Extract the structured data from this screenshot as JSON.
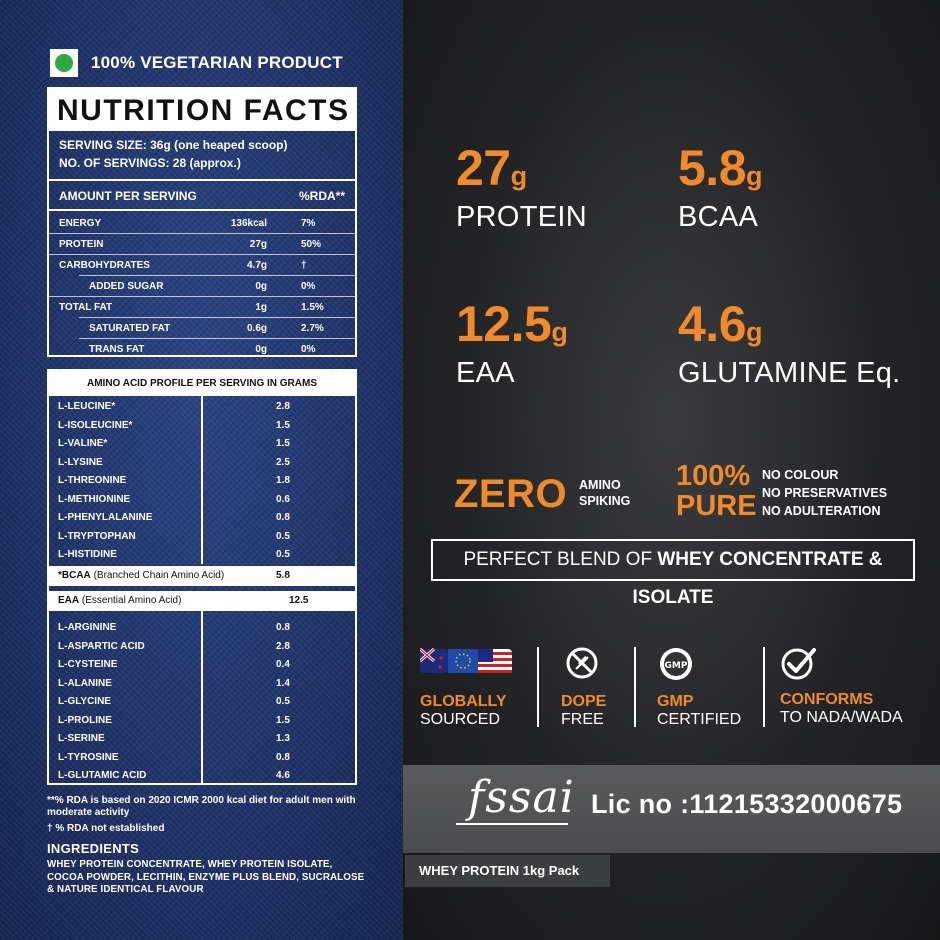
{
  "veg_label": "100% VEGETARIAN PRODUCT",
  "nutrition": {
    "title": "NUTRITION FACTS",
    "serving_size": "SERVING SIZE: 36g (one heaped scoop)",
    "servings": "NO. OF SERVINGS: 28 (approx.)",
    "amount_header": "AMOUNT PER SERVING",
    "rda_header": "%RDA**",
    "rows": [
      {
        "name": "ENERGY",
        "value": "136kcal",
        "rda": "7%"
      },
      {
        "name": "PROTEIN",
        "value": "27g",
        "rda": "50%"
      },
      {
        "name": "CARBOHYDRATES",
        "value": "4.7g",
        "rda": "†"
      },
      {
        "name": "ADDED SUGAR",
        "value": "0g",
        "rda": "0%"
      },
      {
        "name": "TOTAL FAT",
        "value": "1g",
        "rda": "1.5%"
      },
      {
        "name": "SATURATED FAT",
        "value": "0.6g",
        "rda": "2.7%"
      },
      {
        "name": "TRANS FAT",
        "value": "0g",
        "rda": "0%"
      }
    ]
  },
  "amino": {
    "title": "AMINO ACID PROFILE PER SERVING IN GRAMS",
    "group1": [
      {
        "name": "L-LEUCINE*",
        "value": "2.8"
      },
      {
        "name": "L-ISOLEUCINE*",
        "value": "1.5"
      },
      {
        "name": "L-VALINE*",
        "value": "1.5"
      },
      {
        "name": "L-LYSINE",
        "value": "2.5"
      },
      {
        "name": "L-THREONINE",
        "value": "1.8"
      },
      {
        "name": "L-METHIONINE",
        "value": "0.6"
      },
      {
        "name": "L-PHENYLALANINE",
        "value": "0.8"
      },
      {
        "name": "L-TRYPTOPHAN",
        "value": "0.5"
      },
      {
        "name": "L-HISTIDINE",
        "value": "0.5"
      }
    ],
    "bcaa": {
      "abbr": "*BCAA",
      "desc": "(Branched Chain Amino Acid)",
      "value": "5.8"
    },
    "eaa": {
      "abbr": "EAA",
      "desc": "(Essential Amino Acid)",
      "value": "12.5"
    },
    "group2": [
      {
        "name": "L-ARGININE",
        "value": "0.8"
      },
      {
        "name": "L-ASPARTIC ACID",
        "value": "2.8"
      },
      {
        "name": "L-CYSTEINE",
        "value": "0.4"
      },
      {
        "name": "L-ALANINE",
        "value": "1.4"
      },
      {
        "name": "L-GLYCINE",
        "value": "0.5"
      },
      {
        "name": "L-PROLINE",
        "value": "1.5"
      },
      {
        "name": "L-SERINE",
        "value": "1.3"
      },
      {
        "name": "L-TYROSINE",
        "value": "0.8"
      },
      {
        "name": "L-GLUTAMIC ACID",
        "value": "4.6"
      }
    ]
  },
  "footnotes": {
    "rda_note": "**% RDA is based on 2020 ICMR 2000 kcal diet for adult men with moderate activity",
    "dagger_note": "† % RDA not established"
  },
  "ingredients": {
    "title": "INGREDIENTS",
    "text": "WHEY PROTEIN CONCENTRATE, WHEY PROTEIN ISOLATE, COCOA POWDER, LECITHIN, ENZYME PLUS BLEND, SUCRALOSE & NATURE IDENTICAL FLAVOUR"
  },
  "stats": [
    {
      "num": "27",
      "unit": "g",
      "label": "PROTEIN"
    },
    {
      "num": "5.8",
      "unit": "g",
      "label": "BCAA"
    },
    {
      "num": "12.5",
      "unit": "g",
      "label": "EAA"
    },
    {
      "num": "4.6",
      "unit": "g",
      "label": "GLUTAMINE Eq."
    }
  ],
  "zero": {
    "big": "ZERO",
    "line1": "AMINO",
    "line2": "SPIKING"
  },
  "pure": {
    "big1": "100%",
    "big2": "PURE",
    "items": [
      "NO COLOUR",
      "NO PRESERVATIVES",
      "NO ADULTERATION"
    ]
  },
  "blend": {
    "prefix": "PERFECT BLEND OF ",
    "bold": "WHEY CONCENTRATE & ISOLATE"
  },
  "badges": [
    {
      "head": "GLOBALLY",
      "sub": "SOURCED",
      "icon": "flags-icon"
    },
    {
      "head": "DOPE",
      "sub": "FREE",
      "icon": "no-syringe-icon"
    },
    {
      "head": "GMP",
      "sub": "CERTIFIED",
      "icon": "gmp-seal-icon"
    },
    {
      "head": "CONFORMS",
      "sub": "TO NADA/WADA",
      "icon": "check-circle-icon"
    }
  ],
  "gmp_seal_text": "GMP",
  "fssai": {
    "logo": "fssai",
    "license": "Lic no :11215332000675"
  },
  "pack_label": "WHEY PROTEIN 1kg Pack",
  "colors": {
    "accent": "#f08a2a",
    "denim": "#20356a",
    "dark": "#232426",
    "veg_green": "#2eaa3e"
  }
}
